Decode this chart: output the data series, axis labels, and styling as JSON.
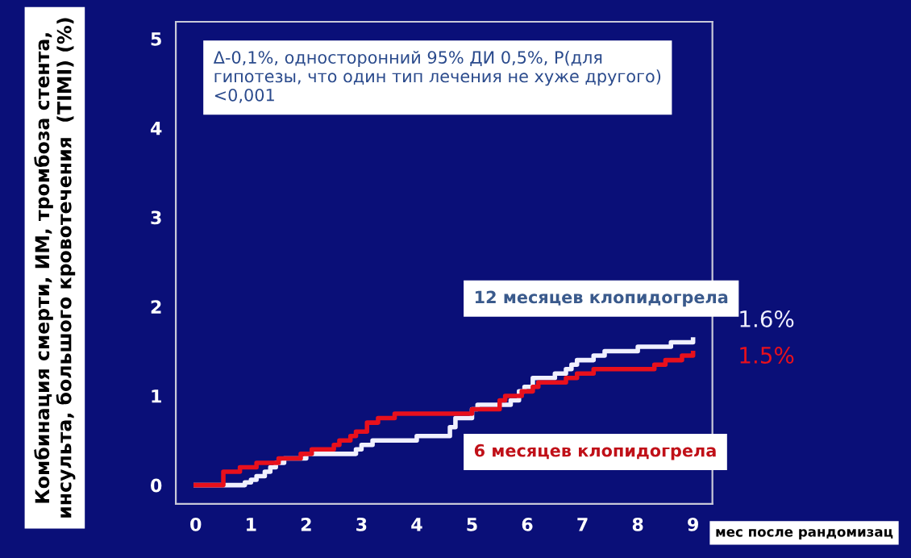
{
  "chart_data": {
    "type": "step",
    "xlabel": "мес после рандомизац",
    "ylabel": "Комбинация смерти, ИМ, тромбоза стента, инсульта, большого кровотечения  (TIMI) (%)",
    "xlim": [
      -0.36,
      9.35
    ],
    "ylim": [
      -0.21,
      5.19
    ],
    "xticks": [
      0,
      1,
      2,
      3,
      4,
      5,
      6,
      7,
      8,
      9
    ],
    "yticks": [
      0,
      1,
      2,
      3,
      4,
      5
    ],
    "grid": false,
    "series": [
      {
        "name": "12 месяцев клопидогрела",
        "color": "#f0f0ff",
        "x": [
          0,
          0.89,
          1.0,
          1.1,
          1.25,
          1.35,
          1.45,
          1.6,
          2.0,
          2.9,
          3.0,
          3.2,
          4.0,
          4.6,
          4.7,
          5.0,
          5.1,
          5.7,
          5.85,
          5.95,
          6.1,
          6.5,
          6.7,
          6.8,
          6.9,
          7.2,
          7.4,
          8.0,
          8.6,
          9.0
        ],
        "values": [
          0,
          0.03,
          0.06,
          0.1,
          0.15,
          0.2,
          0.25,
          0.3,
          0.35,
          0.4,
          0.45,
          0.5,
          0.55,
          0.65,
          0.75,
          0.85,
          0.9,
          0.95,
          1.05,
          1.1,
          1.2,
          1.25,
          1.3,
          1.35,
          1.4,
          1.45,
          1.5,
          1.55,
          1.6,
          1.63
        ]
      },
      {
        "name": "6 месяцев клопидогрела",
        "color": "#e8101c",
        "x": [
          0,
          0.5,
          0.8,
          1.1,
          1.5,
          1.9,
          2.1,
          2.5,
          2.6,
          2.8,
          2.9,
          3.1,
          3.3,
          3.6,
          5.0,
          5.5,
          5.6,
          5.9,
          6.1,
          6.2,
          6.7,
          6.9,
          7.2,
          8.3,
          8.5,
          8.8,
          9.0
        ],
        "values": [
          0,
          0.15,
          0.2,
          0.25,
          0.3,
          0.35,
          0.4,
          0.45,
          0.5,
          0.55,
          0.6,
          0.7,
          0.75,
          0.8,
          0.85,
          0.95,
          1.0,
          1.05,
          1.1,
          1.15,
          1.2,
          1.25,
          1.3,
          1.35,
          1.4,
          1.45,
          1.48
        ]
      }
    ],
    "annotations": [
      "Δ-0,1%, односторонний 95% ДИ 0,5%, P(для гипотезы, что один тип лечения не хуже другого) <0,001",
      "1.6%",
      "1.5%"
    ]
  }
}
